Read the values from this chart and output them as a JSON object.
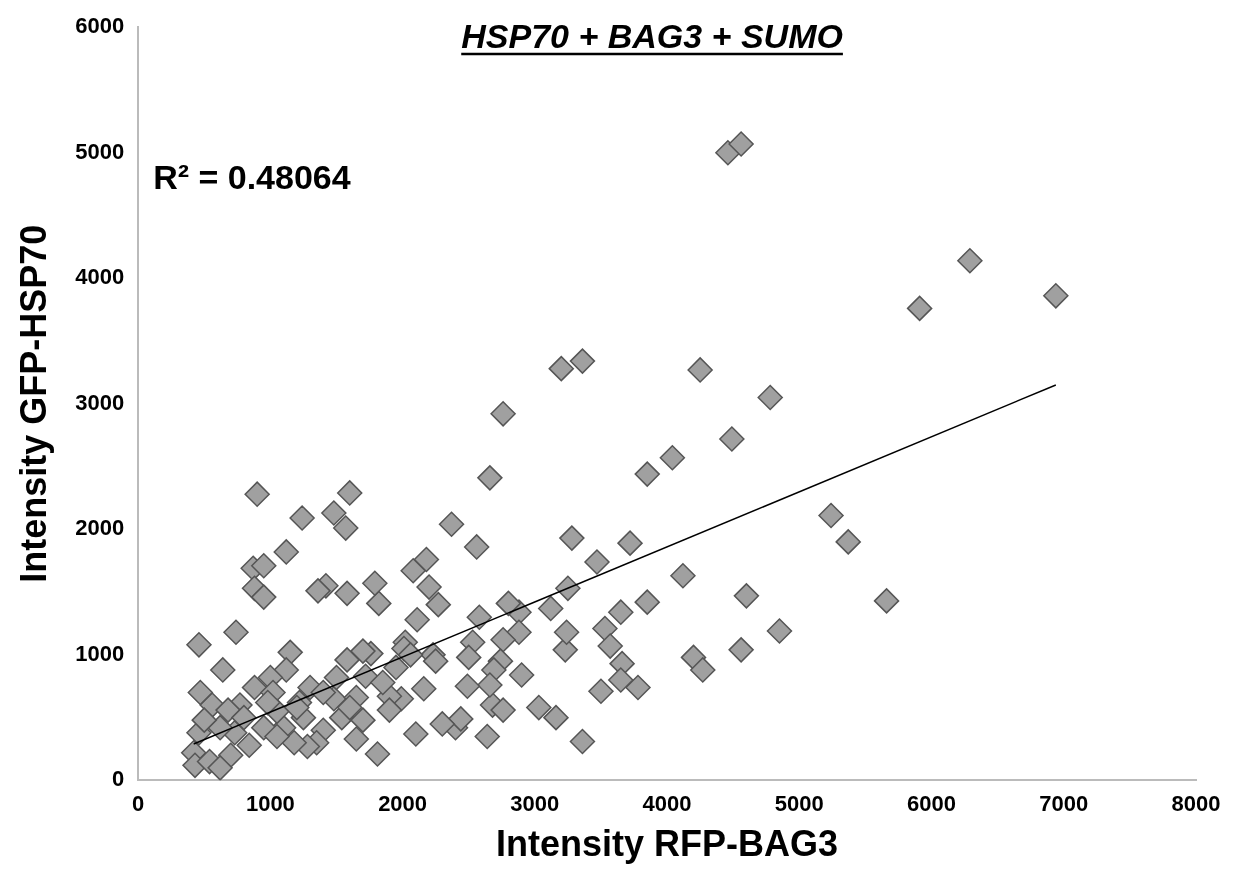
{
  "chart_data": {
    "type": "scatter",
    "title": "HSP70 + BAG3 + SUMO",
    "xlabel": "Intensity RFP-BAG3",
    "ylabel": "Intensity GFP-HSP70",
    "annotations": [
      "R² = 0.48064"
    ],
    "xlim": [
      0,
      8000
    ],
    "xticks": [
      0,
      1000,
      2000,
      3000,
      4000,
      5000,
      6000,
      7000,
      8000
    ],
    "ylim": [
      0,
      6000
    ],
    "yticks": [
      0,
      1000,
      2000,
      3000,
      4000,
      5000,
      6000
    ],
    "grid": false,
    "legend": false,
    "series": [
      {
        "type": "scatter",
        "marker": "diamond",
        "color": "#a0a0a0",
        "x": [
          4460,
          4560,
          6290,
          6940,
          5910,
          3360,
          3200,
          4250,
          4780,
          2760,
          4490,
          4040,
          3850,
          2660,
          5240,
          5370,
          5660,
          4600,
          4850,
          4560,
          4120,
          4200,
          4270,
          3720,
          3470,
          3280,
          3850,
          3650,
          3780,
          3660,
          3650,
          3530,
          3570,
          3500,
          3360,
          3160,
          3030,
          3230,
          3240,
          3250,
          3120,
          2880,
          2880,
          2800,
          2760,
          2740,
          2690,
          2680,
          2660,
          2760,
          2900,
          2640,
          2580,
          2560,
          2530,
          2500,
          2490,
          2400,
          2370,
          2440,
          2300,
          2270,
          2230,
          2200,
          2180,
          2160,
          2110,
          2080,
          2100,
          2020,
          2010,
          1950,
          1990,
          1900,
          1820,
          1790,
          1810,
          1760,
          1720,
          1700,
          1650,
          1600,
          1570,
          1480,
          1580,
          1420,
          1360,
          1580,
          1540,
          1480,
          1400,
          1350,
          1300,
          1240,
          1220,
          1280,
          1120,
          1150,
          1120,
          1100,
          1180,
          900,
          870,
          950,
          880,
          950,
          740,
          460,
          640,
          880,
          770,
          1000,
          1020,
          1050,
          950,
          840,
          730,
          700,
          620,
          560,
          470,
          460,
          420,
          430,
          540,
          620,
          680,
          500,
          1400,
          1500,
          1650,
          1700,
          1850,
          1900,
          2060,
          1250,
          1050,
          800,
          980,
          1200,
          1600,
          2250
        ],
        "values": [
          5000,
          5070,
          4140,
          3860,
          3760,
          3340,
          3280,
          3270,
          3050,
          2920,
          2720,
          2570,
          2440,
          2410,
          2110,
          1900,
          1430,
          1470,
          1190,
          1040,
          1630,
          980,
          880,
          1890,
          1740,
          1930,
          1420,
          1340,
          740,
          930,
          800,
          1210,
          1070,
          710,
          310,
          500,
          580,
          1040,
          1180,
          1530,
          1370,
          1340,
          1180,
          1410,
          1120,
          950,
          880,
          600,
          760,
          560,
          840,
          350,
          1300,
          1860,
          1100,
          980,
          750,
          420,
          2040,
          490,
          450,
          1400,
          1000,
          1540,
          1760,
          730,
          1280,
          1670,
          370,
          1100,
          1050,
          900,
          650,
          670,
          1410,
          1570,
          210,
          1010,
          830,
          1030,
          330,
          2290,
          2010,
          2130,
          1490,
          1550,
          1510,
          960,
          500,
          650,
          400,
          300,
          740,
          2090,
          620,
          270,
          1820,
          1020,
          880,
          420,
          300,
          2280,
          1690,
          1710,
          1530,
          1460,
          1180,
          1080,
          880,
          740,
          600,
          820,
          700,
          550,
          420,
          280,
          380,
          200,
          420,
          600,
          700,
          380,
          220,
          120,
          150,
          100,
          560,
          480,
          700,
          820,
          660,
          480,
          780,
          560,
          1000,
          500,
          350,
          500,
          620,
          580,
          580,
          950
        ]
      },
      {
        "type": "line",
        "marker": "none",
        "color": "#000000",
        "x": [
          420,
          6940
        ],
        "values": [
          290,
          3150
        ]
      }
    ]
  }
}
